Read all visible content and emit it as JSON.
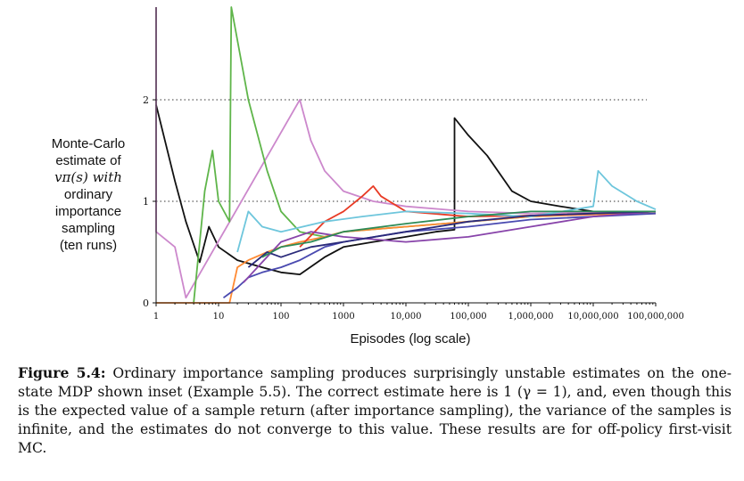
{
  "chart_data": {
    "type": "line",
    "title": "",
    "xlabel": "Episodes (log scale)",
    "ylabel_lines": [
      "Monte-Carlo",
      "estimate of",
      "vπ(s) with",
      "ordinary",
      "importance",
      "sampling",
      "(ten runs)"
    ],
    "x_scale": "log",
    "xlim": [
      1,
      100000000
    ],
    "ylim": [
      0,
      3
    ],
    "x_tick_values": [
      1,
      10,
      100,
      1000,
      10000,
      100000,
      1000000,
      10000000,
      100000000
    ],
    "x_tick_labels": [
      "1",
      "10",
      "100",
      "1000",
      "10,000",
      "100,000",
      "1,000,000",
      "10,000,000",
      "100,000,000"
    ],
    "y_tick_values": [
      0,
      1,
      2
    ],
    "y_tick_labels": [
      "0",
      "1",
      "2"
    ],
    "reference_lines": [
      1,
      2
    ],
    "grid": false,
    "legend": "none",
    "series": [
      {
        "color": "#111111",
        "points": [
          [
            1,
            1.95
          ],
          [
            2,
            1.2
          ],
          [
            3,
            0.8
          ],
          [
            5,
            0.4
          ],
          [
            7,
            0.75
          ],
          [
            10,
            0.55
          ],
          [
            20,
            0.42
          ],
          [
            50,
            0.35
          ],
          [
            100,
            0.3
          ],
          [
            200,
            0.28
          ],
          [
            500,
            0.45
          ],
          [
            1000,
            0.55
          ],
          [
            3000,
            0.6
          ],
          [
            10000,
            0.65
          ],
          [
            30000,
            0.7
          ],
          [
            60000,
            0.72
          ],
          [
            60000,
            1.82
          ],
          [
            100000,
            1.65
          ],
          [
            200000,
            1.45
          ],
          [
            500000,
            1.1
          ],
          [
            1000000,
            1.0
          ],
          [
            3000000,
            0.95
          ],
          [
            10000000,
            0.9
          ],
          [
            100000000,
            0.9
          ]
        ]
      },
      {
        "color": "#cc88cc",
        "points": [
          [
            1,
            3.5
          ],
          [
            1,
            0.7
          ],
          [
            2,
            0.55
          ],
          [
            3,
            0.05
          ],
          [
            200,
            2.0
          ],
          [
            300,
            1.6
          ],
          [
            500,
            1.3
          ],
          [
            1000,
            1.1
          ],
          [
            3000,
            1.0
          ],
          [
            10000,
            0.95
          ],
          [
            100000,
            0.9
          ],
          [
            1000000,
            0.88
          ],
          [
            100000000,
            0.9
          ]
        ]
      },
      {
        "color": "#5fb54a",
        "points": [
          [
            4,
            0.0
          ],
          [
            5,
            0.6
          ],
          [
            6,
            1.1
          ],
          [
            8,
            1.5
          ],
          [
            10,
            1.0
          ],
          [
            15,
            0.8
          ],
          [
            16,
            3.2
          ],
          [
            30,
            2.0
          ],
          [
            60,
            1.3
          ],
          [
            100,
            0.9
          ],
          [
            200,
            0.7
          ],
          [
            500,
            0.65
          ],
          [
            1000,
            0.7
          ],
          [
            10000,
            0.75
          ],
          [
            100000,
            0.8
          ],
          [
            1000000,
            0.85
          ],
          [
            100000000,
            0.9
          ]
        ]
      },
      {
        "color": "#ff8a33",
        "points": [
          [
            1,
            0.0
          ],
          [
            15,
            0.0
          ],
          [
            20,
            0.35
          ],
          [
            30,
            0.42
          ],
          [
            60,
            0.5
          ],
          [
            100,
            0.55
          ],
          [
            200,
            0.6
          ],
          [
            500,
            0.65
          ],
          [
            1000,
            0.7
          ],
          [
            10000,
            0.75
          ],
          [
            100000,
            0.8
          ],
          [
            1000000,
            0.85
          ],
          [
            10000000,
            0.87
          ],
          [
            100000000,
            0.88
          ]
        ]
      },
      {
        "color": "#e83a24",
        "points": [
          [
            200,
            0.55
          ],
          [
            500,
            0.8
          ],
          [
            1000,
            0.9
          ],
          [
            2000,
            1.05
          ],
          [
            3000,
            1.15
          ],
          [
            4000,
            1.05
          ],
          [
            10000,
            0.9
          ],
          [
            100000,
            0.85
          ],
          [
            1000000,
            0.86
          ],
          [
            100000000,
            0.9
          ]
        ]
      },
      {
        "color": "#4a4ab0",
        "points": [
          [
            12,
            0.05
          ],
          [
            20,
            0.15
          ],
          [
            30,
            0.25
          ],
          [
            50,
            0.3
          ],
          [
            100,
            0.35
          ],
          [
            200,
            0.42
          ],
          [
            500,
            0.55
          ],
          [
            1000,
            0.6
          ],
          [
            10000,
            0.7
          ],
          [
            100000,
            0.75
          ],
          [
            1000000,
            0.82
          ],
          [
            100000000,
            0.88
          ]
        ]
      },
      {
        "color": "#6ec6dc",
        "points": [
          [
            20,
            0.5
          ],
          [
            30,
            0.9
          ],
          [
            50,
            0.75
          ],
          [
            100,
            0.7
          ],
          [
            500,
            0.8
          ],
          [
            2000,
            0.85
          ],
          [
            10000,
            0.9
          ],
          [
            100000,
            0.88
          ],
          [
            1000000,
            0.85
          ],
          [
            10000000,
            0.95
          ],
          [
            12000000,
            1.3
          ],
          [
            20000000,
            1.15
          ],
          [
            50000000,
            1.0
          ],
          [
            100000000,
            0.92
          ]
        ]
      },
      {
        "color": "#8844aa",
        "points": [
          [
            25,
            0.2
          ],
          [
            50,
            0.4
          ],
          [
            100,
            0.6
          ],
          [
            300,
            0.7
          ],
          [
            1000,
            0.65
          ],
          [
            10000,
            0.6
          ],
          [
            100000,
            0.65
          ],
          [
            1000000,
            0.75
          ],
          [
            10000000,
            0.85
          ],
          [
            100000000,
            0.9
          ]
        ]
      },
      {
        "color": "#2a2a7a",
        "points": [
          [
            30,
            0.35
          ],
          [
            60,
            0.5
          ],
          [
            100,
            0.45
          ],
          [
            300,
            0.55
          ],
          [
            1000,
            0.6
          ],
          [
            10000,
            0.7
          ],
          [
            100000,
            0.8
          ],
          [
            1000000,
            0.86
          ],
          [
            100000000,
            0.9
          ]
        ]
      },
      {
        "color": "#2e8b57",
        "points": [
          [
            50,
            0.45
          ],
          [
            100,
            0.55
          ],
          [
            300,
            0.6
          ],
          [
            1000,
            0.7
          ],
          [
            10000,
            0.78
          ],
          [
            100000,
            0.85
          ],
          [
            1000000,
            0.9
          ],
          [
            100000000,
            0.9
          ]
        ]
      }
    ]
  },
  "caption": {
    "lead": "Figure 5.4:",
    "text": "Ordinary importance sampling produces surprisingly unstable estimates on the one-state MDP shown inset (Example 5.5). The correct estimate here is 1 (γ = 1), and, even though this is the expected value of a sample return (after importance sampling), the variance of the samples is infinite, and the estimates do not converge to this value. These results are for off-policy first-visit MC."
  }
}
